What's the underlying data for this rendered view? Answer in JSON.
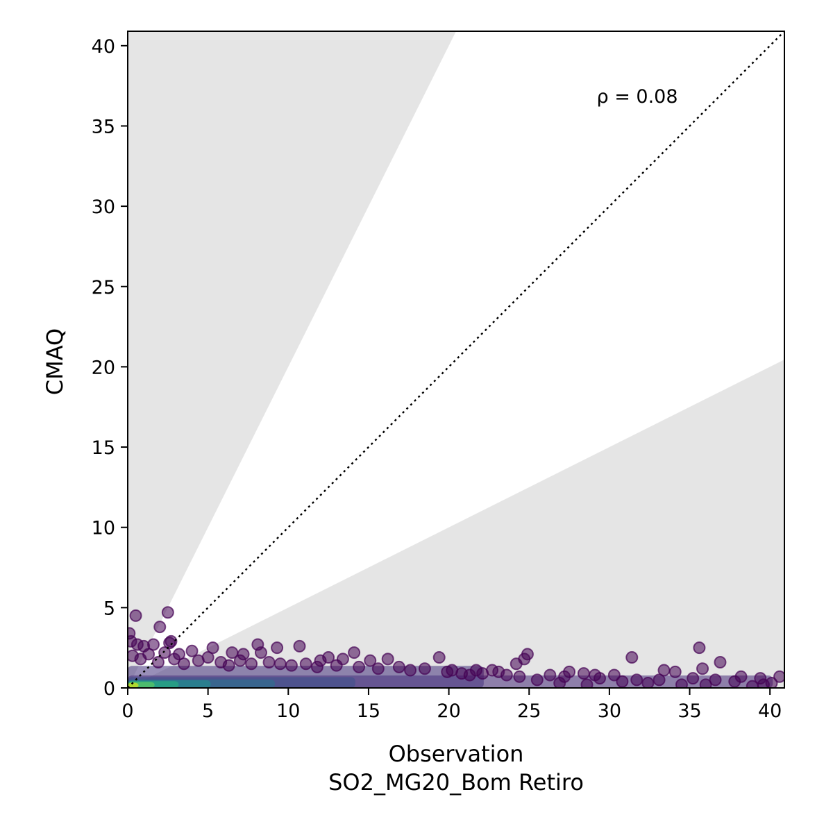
{
  "chart_data": {
    "type": "scatter",
    "xlabel": "Observation",
    "xlabel2": "SO2_MG20_Bom Retiro",
    "ylabel": "CMAQ",
    "xlim": [
      0,
      40.9
    ],
    "ylim": [
      0,
      40.9
    ],
    "xticks": [
      0,
      5,
      10,
      15,
      20,
      25,
      30,
      35,
      40
    ],
    "yticks": [
      0,
      5,
      10,
      15,
      20,
      25,
      30,
      35,
      40
    ],
    "annotation": "ρ = 0.08",
    "reference_line": "1:1",
    "shaded_bands": {
      "upper_slope": 2,
      "lower_slope": 0.5,
      "color": "#e5e5e5"
    },
    "colormap": "viridis",
    "grid": false,
    "points": [
      [
        0.5,
        4.5
      ],
      [
        2.5,
        4.7
      ],
      [
        2.0,
        3.8
      ],
      [
        0.1,
        3.4
      ],
      [
        0.2,
        2.9
      ],
      [
        0.6,
        2.7
      ],
      [
        1.0,
        2.6
      ],
      [
        1.6,
        2.7
      ],
      [
        2.7,
        2.9
      ],
      [
        2.6,
        2.8
      ],
      [
        3.2,
        2.1
      ],
      [
        4.0,
        2.3
      ],
      [
        5.3,
        2.5
      ],
      [
        6.5,
        2.2
      ],
      [
        7.2,
        2.1
      ],
      [
        8.1,
        2.7
      ],
      [
        8.3,
        2.2
      ],
      [
        9.3,
        2.5
      ],
      [
        10.7,
        2.6
      ],
      [
        12.0,
        1.7
      ],
      [
        12.5,
        1.9
      ],
      [
        13.4,
        1.8
      ],
      [
        14.1,
        2.2
      ],
      [
        15.1,
        1.7
      ],
      [
        16.2,
        1.8
      ],
      [
        19.4,
        1.9
      ],
      [
        24.9,
        2.1
      ],
      [
        24.7,
        1.8
      ],
      [
        24.2,
        1.5
      ],
      [
        31.4,
        1.9
      ],
      [
        35.6,
        2.5
      ],
      [
        36.9,
        1.6
      ],
      [
        35.8,
        1.2
      ],
      [
        33.4,
        1.1
      ],
      [
        34.1,
        1.0
      ],
      [
        27.5,
        1.0
      ],
      [
        21.7,
        1.1
      ],
      [
        22.7,
        1.1
      ],
      [
        23.1,
        1.0
      ],
      [
        20.2,
        1.1
      ],
      [
        28.4,
        0.9
      ],
      [
        29.1,
        0.8
      ],
      [
        30.3,
        0.8
      ],
      [
        38.2,
        0.7
      ],
      [
        39.4,
        0.6
      ],
      [
        40.6,
        0.7
      ],
      [
        40.1,
        0.3
      ],
      [
        39.6,
        0.2
      ],
      [
        37.8,
        0.4
      ],
      [
        36.6,
        0.5
      ],
      [
        35.2,
        0.6
      ],
      [
        33.1,
        0.5
      ],
      [
        31.7,
        0.5
      ],
      [
        30.8,
        0.4
      ],
      [
        29.4,
        0.6
      ],
      [
        27.2,
        0.7
      ],
      [
        26.3,
        0.8
      ],
      [
        25.5,
        0.5
      ],
      [
        26.9,
        0.3
      ],
      [
        28.6,
        0.2
      ],
      [
        32.4,
        0.3
      ],
      [
        34.5,
        0.2
      ],
      [
        36.0,
        0.2
      ],
      [
        38.9,
        0.1
      ],
      [
        0.3,
        2.0
      ],
      [
        0.8,
        1.8
      ],
      [
        1.3,
        2.1
      ],
      [
        1.9,
        1.6
      ],
      [
        2.3,
        2.2
      ],
      [
        2.9,
        1.8
      ],
      [
        3.5,
        1.5
      ],
      [
        4.4,
        1.7
      ],
      [
        5.0,
        1.9
      ],
      [
        5.8,
        1.6
      ],
      [
        6.3,
        1.4
      ],
      [
        7.0,
        1.7
      ],
      [
        7.7,
        1.5
      ],
      [
        8.8,
        1.6
      ],
      [
        9.5,
        1.5
      ],
      [
        10.2,
        1.4
      ],
      [
        11.1,
        1.5
      ],
      [
        11.8,
        1.3
      ],
      [
        13.0,
        1.4
      ],
      [
        14.4,
        1.3
      ],
      [
        15.6,
        1.2
      ],
      [
        16.9,
        1.3
      ],
      [
        17.6,
        1.1
      ],
      [
        18.5,
        1.2
      ],
      [
        19.9,
        1.0
      ],
      [
        20.8,
        0.9
      ],
      [
        21.3,
        0.8
      ],
      [
        22.1,
        0.9
      ],
      [
        23.6,
        0.8
      ],
      [
        24.4,
        0.7
      ]
    ]
  }
}
